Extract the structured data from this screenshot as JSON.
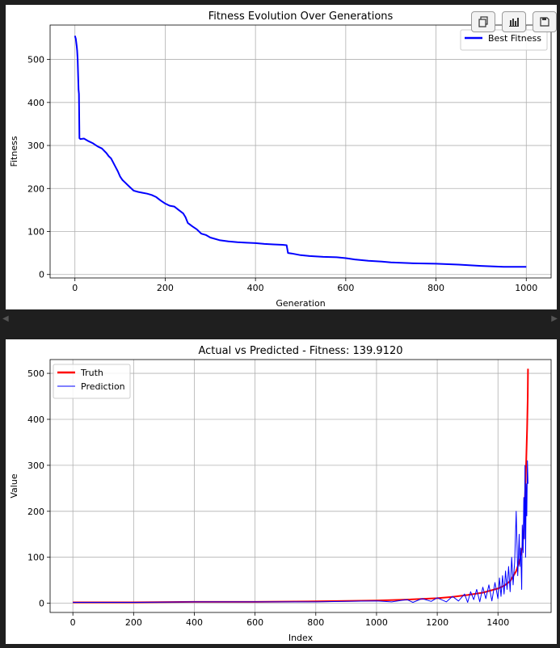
{
  "toolbar": {
    "icons": [
      "copy-icon",
      "bar-chart-icon",
      "save-icon"
    ]
  },
  "chart_data": [
    {
      "type": "line",
      "title": "Fitness Evolution Over Generations",
      "xlabel": "Generation",
      "ylabel": "Fitness",
      "xlim": [
        -55,
        1055
      ],
      "ylim": [
        -8,
        580
      ],
      "xticks": [
        0,
        200,
        400,
        600,
        800,
        1000
      ],
      "yticks": [
        0,
        100,
        200,
        300,
        400,
        500
      ],
      "grid": true,
      "legend": "top-right",
      "series": [
        {
          "name": "Best Fitness",
          "color": "#0000ff",
          "x": [
            0,
            2,
            4,
            5,
            6,
            8,
            9,
            10,
            12,
            20,
            30,
            40,
            50,
            60,
            70,
            75,
            80,
            85,
            90,
            95,
            100,
            105,
            110,
            120,
            130,
            140,
            150,
            160,
            170,
            180,
            190,
            200,
            210,
            220,
            230,
            240,
            245,
            250,
            260,
            270,
            280,
            290,
            300,
            320,
            340,
            360,
            380,
            400,
            420,
            440,
            460,
            469,
            472,
            480,
            500,
            520,
            550,
            580,
            600,
            620,
            650,
            680,
            700,
            750,
            800,
            850,
            900,
            950,
            1000
          ],
          "y": [
            555,
            548,
            530,
            520,
            500,
            430,
            420,
            317,
            315,
            316,
            310,
            305,
            298,
            293,
            282,
            275,
            270,
            260,
            250,
            240,
            228,
            220,
            215,
            205,
            195,
            192,
            190,
            188,
            185,
            180,
            172,
            165,
            160,
            158,
            150,
            142,
            133,
            120,
            112,
            105,
            95,
            92,
            86,
            80,
            77,
            75,
            74,
            73,
            71,
            70,
            69,
            68,
            50,
            49,
            45,
            43,
            41,
            40,
            38,
            35,
            32,
            30,
            28,
            26,
            25,
            23,
            20,
            18,
            18
          ]
        }
      ]
    },
    {
      "type": "line",
      "title": "Actual vs Predicted - Fitness: 139.9120",
      "xlabel": "Index",
      "ylabel": "Value",
      "xlim": [
        -75,
        1575
      ],
      "ylim": [
        -20,
        530
      ],
      "xticks": [
        0,
        200,
        400,
        600,
        800,
        1000,
        1200,
        1400
      ],
      "yticks": [
        0,
        100,
        200,
        300,
        400,
        500
      ],
      "grid": true,
      "legend": "top-left",
      "series": [
        {
          "name": "Truth",
          "color": "#ff0000",
          "x": [
            0,
            200,
            400,
            600,
            800,
            900,
            1000,
            1100,
            1200,
            1250,
            1300,
            1350,
            1400,
            1420,
            1440,
            1460,
            1470,
            1480,
            1485,
            1490,
            1493,
            1496,
            1498,
            1499
          ],
          "y": [
            2,
            2,
            3,
            3,
            4,
            5,
            6,
            8,
            11,
            14,
            18,
            23,
            32,
            38,
            48,
            70,
            90,
            120,
            160,
            250,
            310,
            380,
            450,
            510
          ]
        },
        {
          "name": "Prediction",
          "color": "#0000ff",
          "x": [
            0,
            200,
            400,
            600,
            800,
            900,
            1000,
            1050,
            1100,
            1120,
            1150,
            1180,
            1200,
            1230,
            1250,
            1270,
            1290,
            1300,
            1310,
            1320,
            1330,
            1340,
            1350,
            1360,
            1370,
            1380,
            1390,
            1400,
            1405,
            1410,
            1415,
            1420,
            1425,
            1430,
            1435,
            1440,
            1445,
            1450,
            1455,
            1460,
            1465,
            1470,
            1472,
            1475,
            1478,
            1480,
            1483,
            1485,
            1487,
            1489,
            1491,
            1493,
            1495,
            1497,
            1499
          ],
          "y": [
            2,
            2,
            3,
            3,
            3,
            4,
            5,
            3,
            8,
            2,
            10,
            4,
            12,
            3,
            15,
            5,
            20,
            2,
            25,
            8,
            30,
            3,
            35,
            10,
            40,
            5,
            45,
            10,
            55,
            15,
            60,
            20,
            70,
            30,
            80,
            25,
            100,
            40,
            90,
            200,
            60,
            150,
            80,
            120,
            30,
            170,
            110,
            230,
            140,
            300,
            100,
            260,
            190,
            310,
            260
          ]
        }
      ]
    }
  ]
}
